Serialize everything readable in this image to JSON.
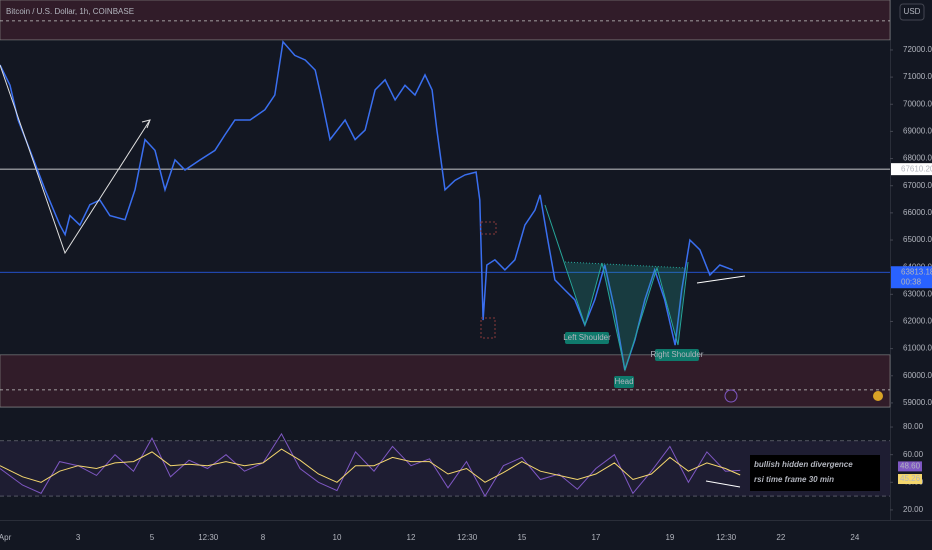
{
  "chart_data": [
    {
      "type": "line",
      "title": "Bitcoin / U.S. Dollar, 1h, COINBASE",
      "currency": "USD",
      "x": [
        0.89,
        1.16,
        1.38,
        1.7,
        2.11,
        2.51,
        2.65,
        2.78,
        3.05,
        3.32,
        3.59,
        3.86,
        4.27,
        4.54,
        4.81,
        5.08,
        5.35,
        5.62,
        5.89,
        6.3,
        6.7,
        6.97,
        7.24,
        7.65,
        8.05,
        8.32,
        8.54,
        8.86,
        9.14,
        9.41,
        9.59,
        9.81,
        10.22,
        10.49,
        10.76,
        11.03,
        11.3,
        11.57,
        11.84,
        12.11,
        12.38,
        12.57,
        12.7,
        12.92,
        13.19,
        13.46,
        13.76,
        13.86,
        13.95,
        14.05,
        14.27,
        14.54,
        14.81,
        15.08,
        15.35,
        15.49,
        15.7,
        15.89,
        16.16,
        16.43,
        16.7,
        16.97,
        17.24,
        17.51,
        17.78,
        18.05,
        18.32,
        18.59,
        18.86,
        19.14,
        19.32,
        19.54,
        19.81,
        20.08,
        20.35,
        20.7
      ],
      "series": [
        {
          "name": "BTCUSD",
          "color": "#3a6ff0",
          "values": [
            71450,
            70700,
            69420,
            68300,
            66850,
            65550,
            65200,
            65900,
            65550,
            66300,
            66470,
            65900,
            65750,
            66850,
            68700,
            68300,
            66850,
            67950,
            67580,
            67950,
            68300,
            68870,
            69420,
            69420,
            69800,
            70340,
            72300,
            71800,
            71630,
            71260,
            70160,
            68700,
            69420,
            68700,
            69050,
            70530,
            70900,
            70160,
            70700,
            70340,
            71080,
            70530,
            69050,
            66850,
            67200,
            67400,
            67500,
            66470,
            62050,
            64080,
            64270,
            63900,
            64270,
            65550,
            66100,
            66660,
            65000,
            63530,
            63160,
            62800,
            61870,
            62800,
            64080,
            62420,
            60210,
            61310,
            62800,
            63900,
            62800,
            61130,
            63160,
            65000,
            64640,
            63710,
            64080,
            63900
          ]
        }
      ],
      "xlim": [
        0.89,
        24.95
      ],
      "xticks": [
        {
          "value": 1,
          "label": "Apr"
        },
        3,
        5,
        {
          "value": 6.52,
          "label": "12:30"
        },
        8,
        10,
        12,
        {
          "value": 13.52,
          "label": "12:30"
        },
        15,
        17,
        19,
        {
          "value": 20.52,
          "label": "12:30"
        },
        22,
        24
      ],
      "ylim": [
        58850,
        73840
      ],
      "yticks": [
        {
          "value": 59000,
          "label": "59000.00"
        },
        {
          "value": 60000,
          "label": "60000.00"
        },
        {
          "value": 61000,
          "label": "61000.00"
        },
        {
          "value": 62000,
          "label": "62000.00"
        },
        {
          "value": 63000,
          "label": "63000.00"
        },
        {
          "value": 64000,
          "label": "64000.00"
        },
        {
          "value": 65000,
          "label": "65000.00"
        },
        {
          "value": 66000,
          "label": "66000.00"
        },
        {
          "value": 67000,
          "label": "67000.00"
        },
        {
          "value": 68000,
          "label": "68000.00"
        },
        {
          "value": 69000,
          "label": "69000.00"
        },
        {
          "value": 70000,
          "label": "70000.00"
        },
        {
          "value": 71000,
          "label": "71000.00"
        },
        {
          "value": 72000,
          "label": "72000.00"
        }
      ],
      "price_lines": [
        {
          "value": 67610.2,
          "label": "67610.20",
          "color": "#ffffff"
        },
        {
          "value": 63813.18,
          "label": "63813.18",
          "color": "#2962ff"
        }
      ],
      "countdown": "00:38",
      "zones": [
        [
          58850,
          60770
        ],
        [
          72370,
          73840
        ]
      ],
      "dashed_levels": [
        59480,
        73070
      ],
      "annotations": [
        "Left Shoulder",
        "Head",
        "Right Shoulder"
      ]
    },
    {
      "type": "line",
      "x": [
        0.89,
        1.5,
        2,
        2.5,
        3,
        3.5,
        4,
        4.5,
        5,
        5.5,
        6,
        6.5,
        7,
        7.5,
        8,
        8.5,
        9,
        9.5,
        10,
        10.5,
        11,
        11.5,
        12,
        12.5,
        13,
        13.5,
        14,
        14.5,
        15,
        15.5,
        16,
        16.5,
        17,
        17.5,
        18,
        18.5,
        19,
        19.5,
        20,
        20.5,
        20.9
      ],
      "series": [
        {
          "name": "RSI",
          "color": "#7e57c2",
          "last_value_label": "48.60",
          "values": [
            50,
            38,
            32,
            55,
            52,
            45,
            60,
            48,
            72,
            44,
            56,
            50,
            60,
            48,
            54,
            75,
            50,
            40,
            34,
            62,
            48,
            66,
            52,
            57,
            36,
            55,
            30,
            52,
            58,
            42,
            46,
            35,
            50,
            60,
            32,
            48,
            66,
            40,
            62,
            48,
            48.6
          ]
        },
        {
          "name": "RSI-based MA",
          "color": "#f5d76e",
          "last_value_label": "45.26",
          "values": [
            52,
            44,
            40,
            48,
            52,
            50,
            54,
            55,
            62,
            52,
            53,
            52,
            55,
            52,
            54,
            64,
            56,
            46,
            40,
            52,
            52,
            58,
            55,
            55,
            46,
            50,
            40,
            47,
            55,
            48,
            45,
            42,
            46,
            54,
            42,
            46,
            58,
            48,
            54,
            50,
            45.26
          ]
        }
      ],
      "ylim": [
        12.7,
        94.5
      ],
      "yticks": [
        {
          "value": 20,
          "label": "20.00"
        },
        {
          "value": 40,
          "label": "40.00"
        },
        {
          "value": 60,
          "label": "60.00"
        },
        {
          "value": 80,
          "label": "80.00"
        }
      ],
      "bands": [
        30,
        70
      ],
      "annotations": [
        "bullish hidden divergence",
        "rsi time frame 30 min"
      ]
    }
  ]
}
